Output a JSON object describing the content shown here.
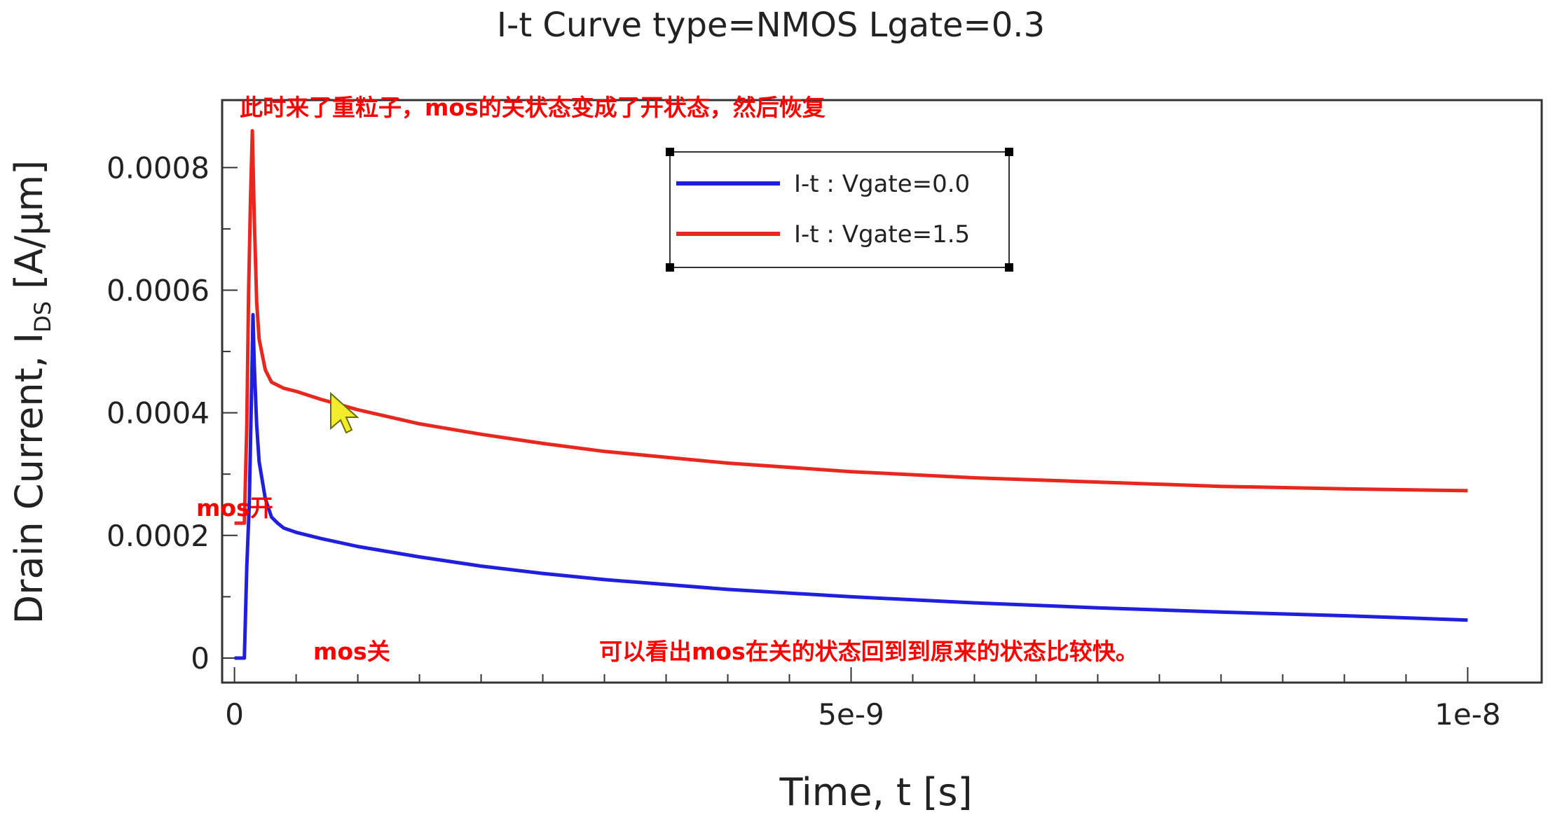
{
  "chart_data": {
    "type": "line",
    "title": "I-t Curve type=NMOS Lgate=0.3",
    "xlabel": "Time, t [s]",
    "ylabel_main": "Drain Current, I",
    "ylabel_sub": "DS",
    "ylabel_unit": " [A/μm]",
    "xlim": [
      -1e-10,
      1.06e-08
    ],
    "ylim": [
      -4e-05,
      0.00091
    ],
    "x_ticks": [
      0,
      5e-09,
      1e-08
    ],
    "x_tick_labels": [
      "0",
      "5e-9",
      "1e-8"
    ],
    "y_ticks": [
      0,
      0.0002,
      0.0004,
      0.0006,
      0.0008
    ],
    "y_tick_labels": [
      "0",
      "0.0002",
      "0.0004",
      "0.0006",
      "0.0008"
    ],
    "grid": false,
    "legend_position": "top-center",
    "series": [
      {
        "name": "I-t : Vgate=0.0",
        "color": "#1f1fdd",
        "x": [
          0,
          8e-11,
          1e-10,
          1.2e-10,
          1.4e-10,
          1.5e-10,
          1.6e-10,
          1.8e-10,
          2e-10,
          2.5e-10,
          3e-10,
          3.5e-10,
          4e-10,
          5e-10,
          7e-10,
          1e-09,
          1.5e-09,
          2e-09,
          2.5e-09,
          3e-09,
          4e-09,
          5e-09,
          6e-09,
          7e-09,
          8e-09,
          9e-09,
          1e-08
        ],
        "y": [
          0,
          0,
          0.00015,
          0.00025,
          0.00045,
          0.00056,
          0.00048,
          0.00038,
          0.00032,
          0.00026,
          0.00023,
          0.00022,
          0.000212,
          0.000205,
          0.000195,
          0.000182,
          0.000165,
          0.00015,
          0.000138,
          0.000128,
          0.000112,
          0.0001,
          9e-05,
          8.2e-05,
          7.5e-05,
          6.9e-05,
          6.2e-05
        ]
      },
      {
        "name": "I-t : Vgate=1.5",
        "color": "#e8281e",
        "x": [
          0,
          8e-11,
          1e-10,
          1.15e-10,
          1.3e-10,
          1.45e-10,
          1.6e-10,
          1.8e-10,
          2e-10,
          2.5e-10,
          3e-10,
          4e-10,
          5e-10,
          7e-10,
          1e-09,
          1.5e-09,
          2e-09,
          2.5e-09,
          3e-09,
          4e-09,
          5e-09,
          6e-09,
          7e-09,
          8e-09,
          9e-09,
          1e-08
        ],
        "y": [
          0.00022,
          0.00022,
          0.00038,
          0.0006,
          0.00075,
          0.00086,
          0.00072,
          0.00058,
          0.00052,
          0.00047,
          0.00045,
          0.00044,
          0.000435,
          0.000422,
          0.000405,
          0.000382,
          0.000365,
          0.00035,
          0.000337,
          0.000318,
          0.000304,
          0.000294,
          0.000287,
          0.00028,
          0.000276,
          0.000273
        ]
      }
    ],
    "annotations": [
      {
        "name": "heavy-ion-note",
        "text": "此时来了重粒子，mos的关状态变成了开状态，然后恢复"
      },
      {
        "name": "mos-on-note",
        "text": "mos开"
      },
      {
        "name": "mos-off-note",
        "text": "mos关"
      },
      {
        "name": "recovery-note",
        "text": "可以看出mos在关的状态回到到原来的状态比较快。"
      }
    ]
  }
}
